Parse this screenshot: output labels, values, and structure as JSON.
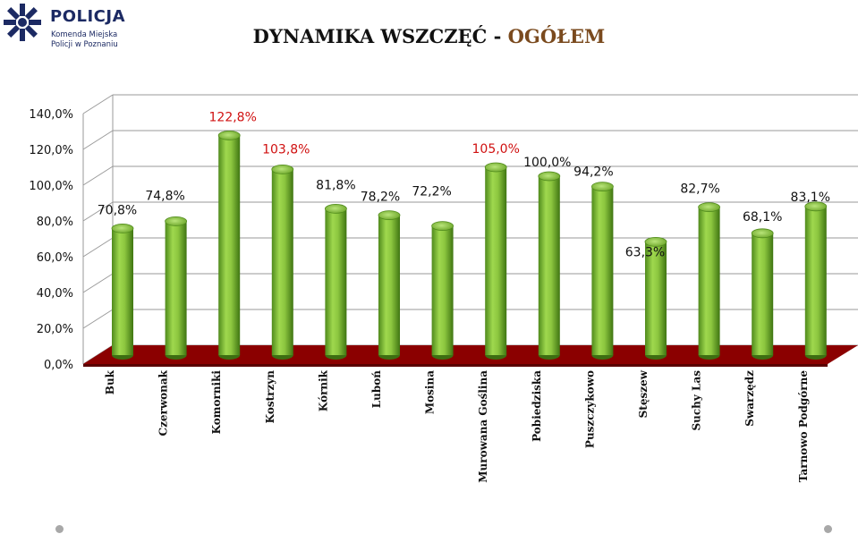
{
  "logo": {
    "name": "POLICJA",
    "line1": "Komenda Miejska",
    "line2": "Policji w Poznaniu"
  },
  "title": {
    "main": "DYNAMIKA WSZCZĘĆ - ",
    "accent": "OGÓŁEM"
  },
  "colors": {
    "bar": "#8cc63f",
    "floor": "#8b0000",
    "highlight_label": "#d01010"
  },
  "chart_data": {
    "type": "bar",
    "title": "DYNAMIKA WSZCZĘĆ - OGÓŁEM",
    "xlabel": "",
    "ylabel": "",
    "ylim": [
      0,
      140
    ],
    "y_ticks": [
      "0,0%",
      "20,0%",
      "40,0%",
      "60,0%",
      "80,0%",
      "100,0%",
      "120,0%",
      "140,0%"
    ],
    "grid": true,
    "categories": [
      "Buk",
      "Czerwonak",
      "Komorniki",
      "Kostrzyn",
      "Kórnik",
      "Luboń",
      "Mosina",
      "Murowana Goślina",
      "Pobiedziska",
      "Puszczykowo",
      "Stęszew",
      "Suchy Las",
      "Swarzędz",
      "Tarnowo Podgórne"
    ],
    "values": [
      70.8,
      74.8,
      122.8,
      103.8,
      81.8,
      78.2,
      72.2,
      105.0,
      100.0,
      94.2,
      63.3,
      82.7,
      68.1,
      83.1
    ],
    "labels": [
      "70,8%",
      "74,8%",
      "122,8%",
      "103,8%",
      "81,8%",
      "78,2%",
      "72,2%",
      "105,0%",
      "100,0%",
      "94,2%",
      "63,3%",
      "82,7%",
      "68,1%",
      "83,1%"
    ],
    "highlighted": [
      false,
      false,
      true,
      true,
      false,
      false,
      false,
      true,
      false,
      false,
      false,
      false,
      false,
      false
    ]
  }
}
